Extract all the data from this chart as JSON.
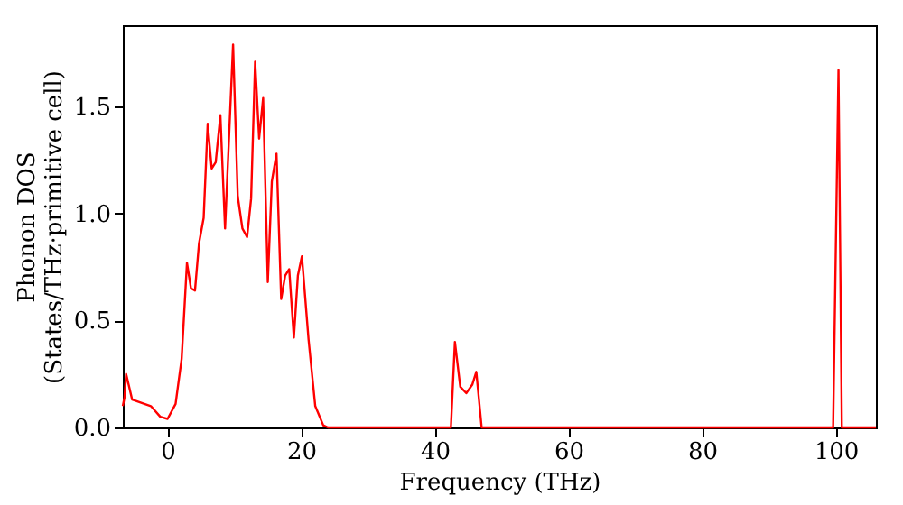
{
  "chart_data": {
    "type": "line",
    "xlabel": "Frequency (THz)",
    "ylabel": "Phonon DOS\n(States/THz·primitive cell)",
    "xlim": [
      -6.7,
      106
    ],
    "xticks": [
      0,
      20,
      40,
      60,
      80,
      100
    ],
    "ylim": [
      0,
      1.88
    ],
    "yticks": [
      {
        "value": 0,
        "label": "0.0"
      },
      0.5,
      {
        "value": 1,
        "label": "1.0"
      },
      1.5
    ],
    "grid": false,
    "marker": "none",
    "line_style": "solid",
    "series": [
      {
        "color": "#ff0000",
        "x": [
          -6.7,
          -6.45,
          -6.2,
          -5.3,
          -2.5,
          -1.1,
          0,
          1.2,
          2.1,
          2.9,
          3.5,
          4.1,
          4.7,
          5.4,
          6.0,
          6.6,
          7.2,
          7.9,
          8.6,
          9.8,
          10.5,
          11.2,
          11.9,
          12.5,
          13.1,
          13.7,
          14.3,
          15.0,
          15.6,
          16.3,
          17.0,
          17.6,
          18.2,
          18.9,
          19.5,
          20.1,
          21.1,
          22.1,
          23.3,
          24,
          42.4,
          43.0,
          43.8,
          44.7,
          45.6,
          46.2,
          47,
          99.6,
          100.4,
          100.9,
          106
        ],
        "values": [
          0.1,
          0.14,
          0.25,
          0.13,
          0.1,
          0.05,
          0.04,
          0.11,
          0.32,
          0.77,
          0.65,
          0.64,
          0.86,
          0.98,
          1.42,
          1.21,
          1.24,
          1.46,
          0.93,
          1.79,
          1.08,
          0.93,
          0.89,
          1.07,
          1.71,
          1.35,
          1.54,
          0.68,
          1.15,
          1.28,
          0.6,
          0.71,
          0.74,
          0.42,
          0.71,
          0.8,
          0.41,
          0.1,
          0.01,
          0,
          0,
          0.4,
          0.19,
          0.16,
          0.2,
          0.26,
          0,
          0,
          1.67,
          0,
          0
        ]
      }
    ]
  }
}
